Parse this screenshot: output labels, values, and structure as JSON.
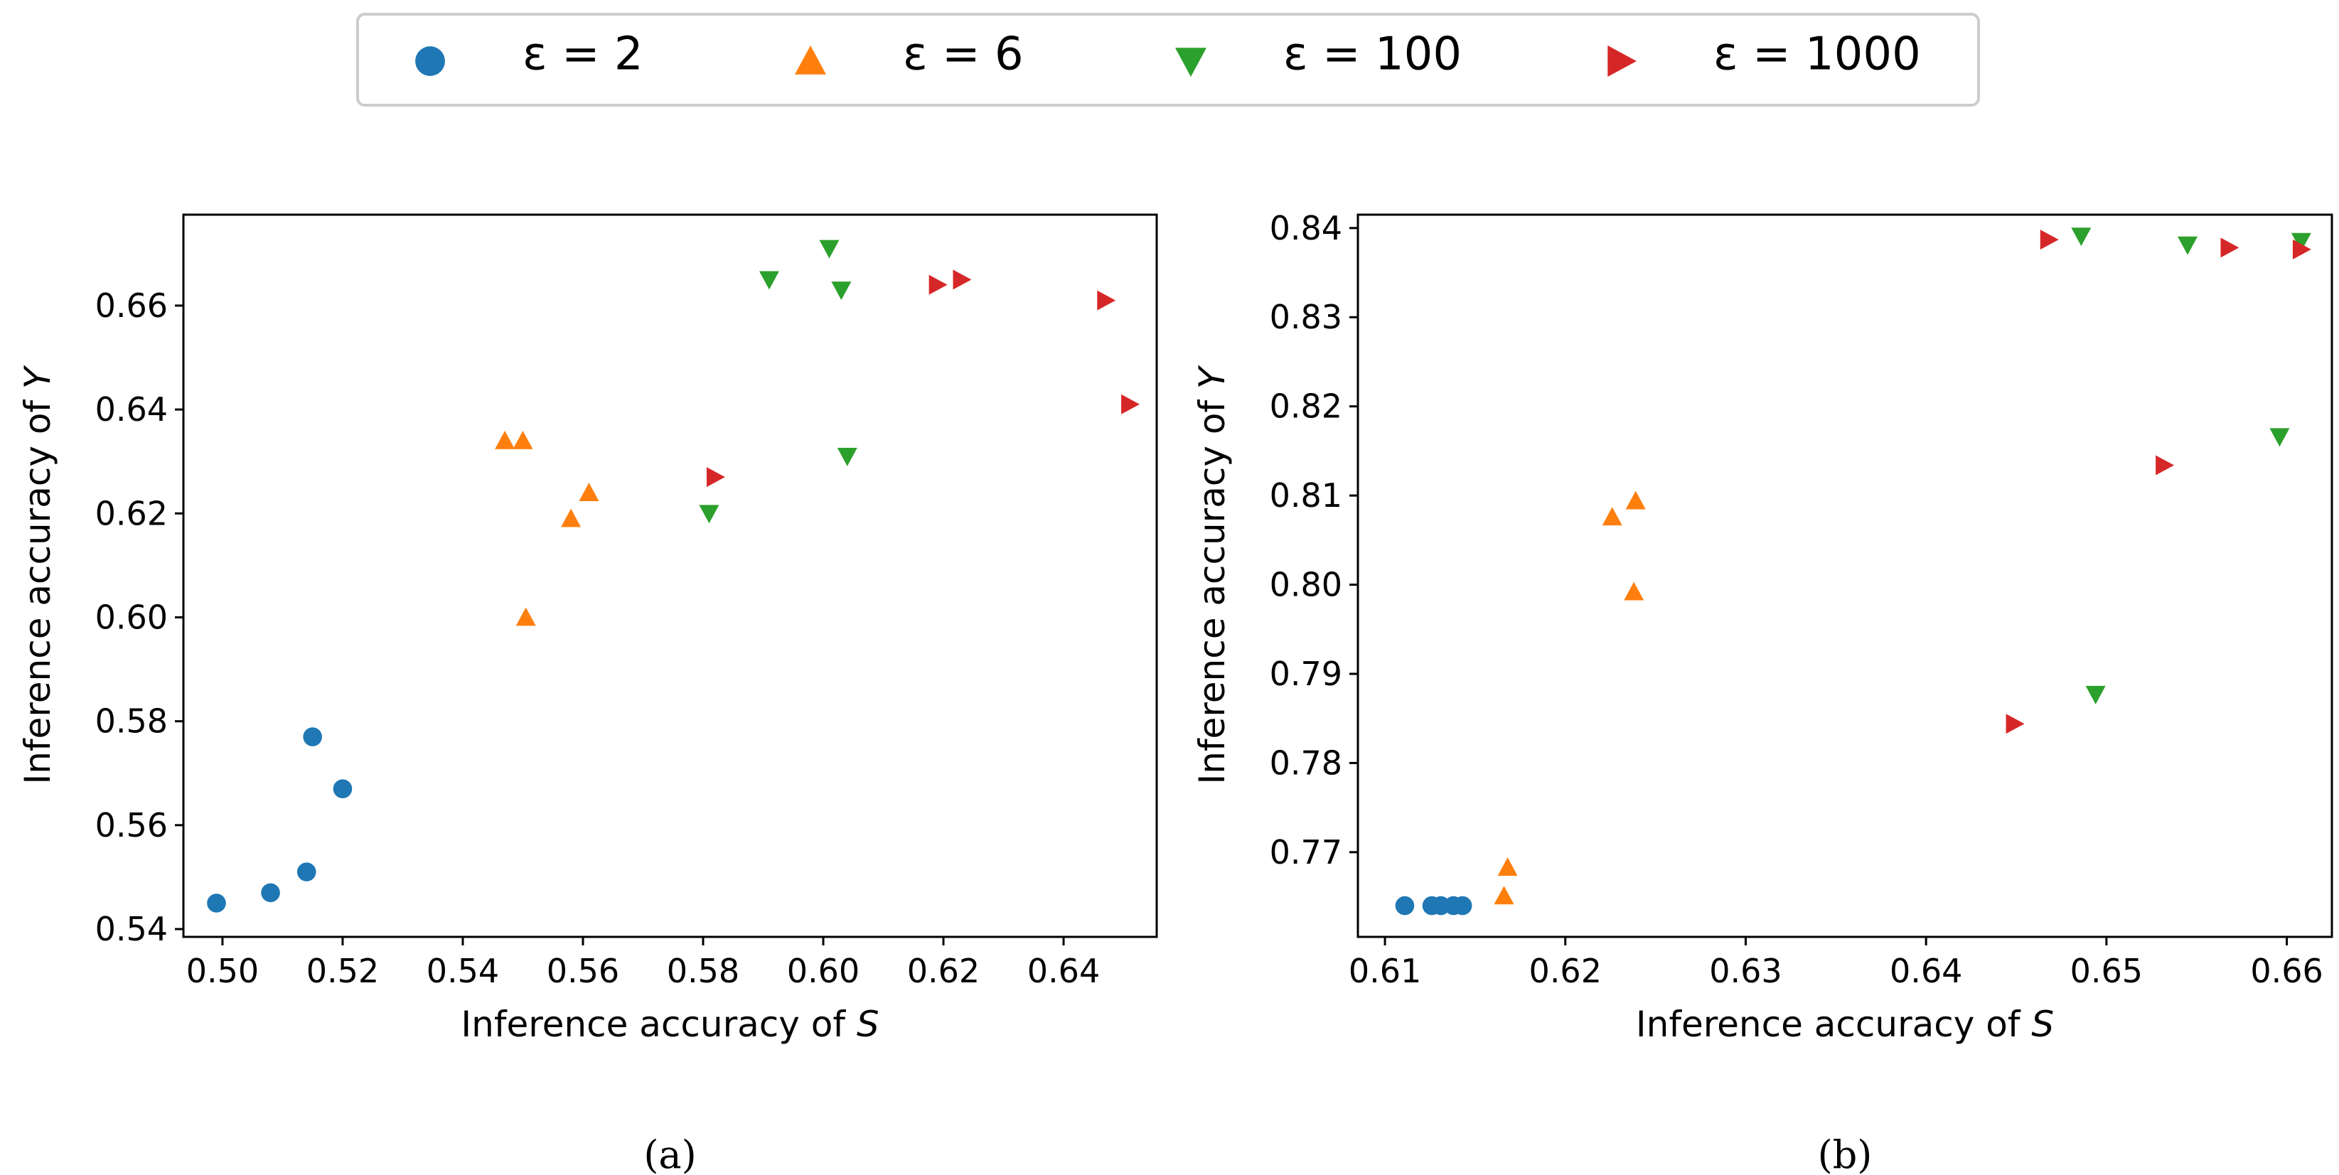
{
  "legend": [
    {
      "label": "ε = 2",
      "color": "#1f77b4",
      "marker": "circle"
    },
    {
      "label": "ε = 6",
      "color": "#ff7f0e",
      "marker": "triangle-up"
    },
    {
      "label": "ε = 100",
      "color": "#2ca02c",
      "marker": "triangle-down"
    },
    {
      "label": "ε = 1000",
      "color": "#d62728",
      "marker": "triangle-right"
    }
  ],
  "chart_data": [
    {
      "type": "scatter",
      "panel_label": "(a)",
      "xlabel": "Inference accuracy of S",
      "ylabel": "Inference accuracy of Y",
      "xlim": [
        0.4935,
        0.6555
      ],
      "ylim": [
        0.5385,
        0.6775
      ],
      "xticks": [
        0.5,
        0.52,
        0.54,
        0.56,
        0.58,
        0.6,
        0.62,
        0.64
      ],
      "xtick_labels": [
        "0.50",
        "0.52",
        "0.54",
        "0.56",
        "0.58",
        "0.60",
        "0.62",
        "0.64"
      ],
      "yticks": [
        0.54,
        0.56,
        0.58,
        0.6,
        0.62,
        0.64,
        0.66
      ],
      "ytick_labels": [
        "0.54",
        "0.56",
        "0.58",
        "0.60",
        "0.62",
        "0.64",
        "0.66"
      ],
      "series": [
        {
          "name": "ε = 2",
          "points": [
            [
              0.499,
              0.545
            ],
            [
              0.508,
              0.547
            ],
            [
              0.514,
              0.551
            ],
            [
              0.515,
              0.577
            ],
            [
              0.52,
              0.567
            ]
          ]
        },
        {
          "name": "ε = 6",
          "points": [
            [
              0.547,
              0.634
            ],
            [
              0.55,
              0.634
            ],
            [
              0.558,
              0.619
            ],
            [
              0.561,
              0.624
            ],
            [
              0.5505,
              0.6
            ]
          ]
        },
        {
          "name": "ε = 100",
          "points": [
            [
              0.581,
              0.62
            ],
            [
              0.591,
              0.665
            ],
            [
              0.601,
              0.671
            ],
            [
              0.603,
              0.663
            ],
            [
              0.604,
              0.631
            ]
          ]
        },
        {
          "name": "ε = 1000",
          "points": [
            [
              0.582,
              0.627
            ],
            [
              0.619,
              0.664
            ],
            [
              0.623,
              0.665
            ],
            [
              0.647,
              0.661
            ],
            [
              0.651,
              0.641
            ]
          ]
        }
      ]
    },
    {
      "type": "scatter",
      "panel_label": "(b)",
      "xlabel": "Inference accuracy of S",
      "ylabel": "Inference accuracy of Y",
      "xlim": [
        0.6085,
        0.6625
      ],
      "ylim": [
        0.7605,
        0.8415
      ],
      "xticks": [
        0.61,
        0.62,
        0.63,
        0.64,
        0.65,
        0.66
      ],
      "xtick_labels": [
        "0.61",
        "0.62",
        "0.63",
        "0.64",
        "0.65",
        "0.66"
      ],
      "yticks": [
        0.77,
        0.78,
        0.79,
        0.8,
        0.81,
        0.82,
        0.83,
        0.84
      ],
      "ytick_labels": [
        "0.77",
        "0.78",
        "0.79",
        "0.80",
        "0.81",
        "0.82",
        "0.83",
        "0.84"
      ],
      "series": [
        {
          "name": "ε = 2",
          "points": [
            [
              0.6111,
              0.764
            ],
            [
              0.6126,
              0.764
            ],
            [
              0.6131,
              0.764
            ],
            [
              0.6138,
              0.764
            ],
            [
              0.6143,
              0.764
            ]
          ]
        },
        {
          "name": "ε = 6",
          "points": [
            [
              0.6168,
              0.7683
            ],
            [
              0.6166,
              0.7651
            ],
            [
              0.6226,
              0.8076
            ],
            [
              0.6239,
              0.8094
            ],
            [
              0.6238,
              0.7992
            ]
          ]
        },
        {
          "name": "ε = 100",
          "points": [
            [
              0.6486,
              0.8391
            ],
            [
              0.6545,
              0.8381
            ],
            [
              0.6608,
              0.8385
            ],
            [
              0.6596,
              0.8166
            ],
            [
              0.6494,
              0.7877
            ]
          ]
        },
        {
          "name": "ε = 1000",
          "points": [
            [
              0.6468,
              0.8387
            ],
            [
              0.6568,
              0.8378
            ],
            [
              0.6608,
              0.8376
            ],
            [
              0.6532,
              0.8134
            ],
            [
              0.6449,
              0.7844
            ]
          ]
        }
      ]
    }
  ]
}
